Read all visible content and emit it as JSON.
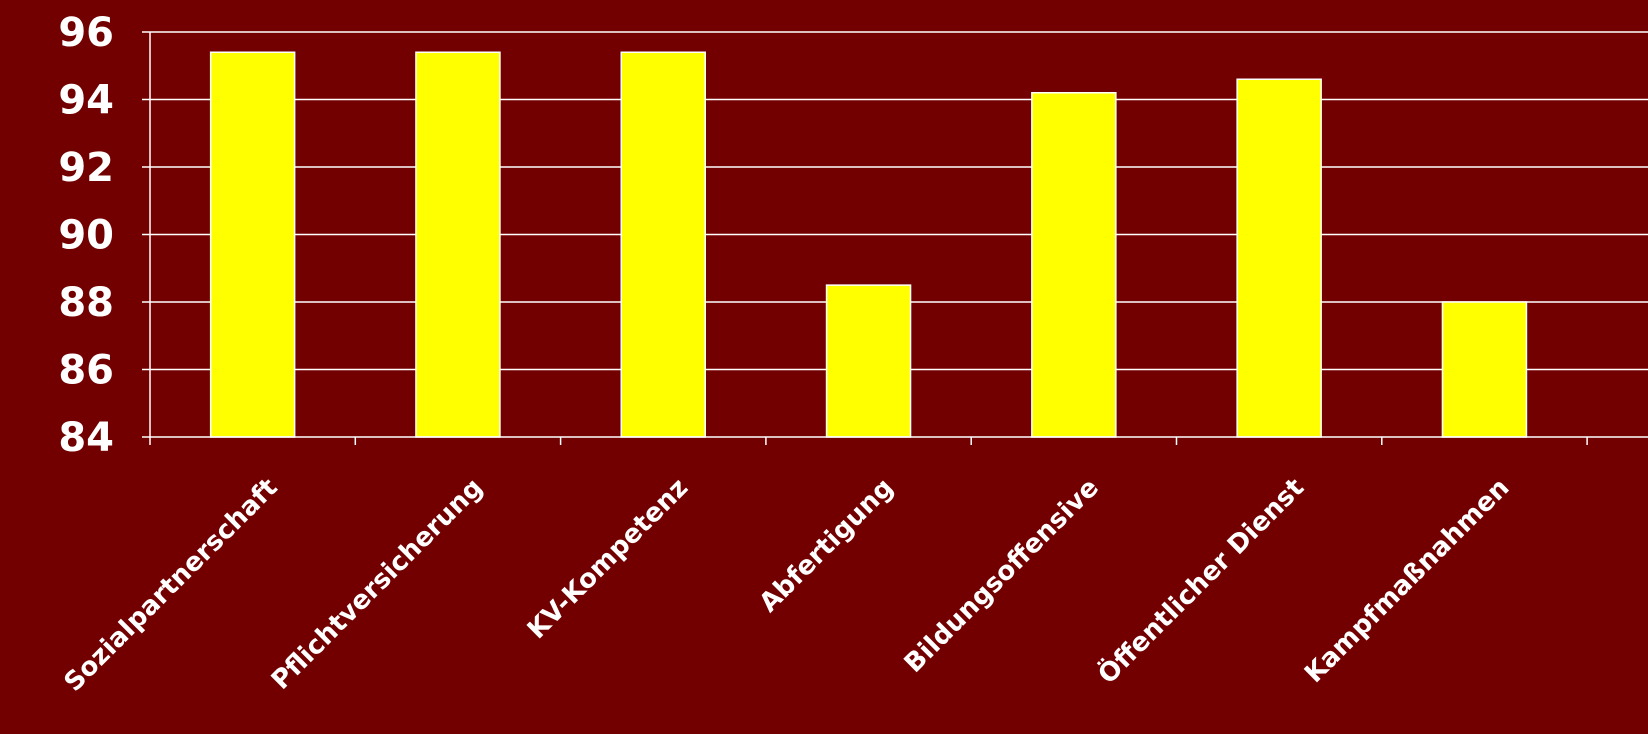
{
  "chart_data": {
    "type": "bar",
    "title": "",
    "xlabel": "",
    "ylabel": "",
    "categories": [
      "Sozialpartnerschaft",
      "Pflichtversicherung",
      "KV-Kompetenz",
      "Abfertigung",
      "Bildungsoffensive",
      "Öffentlicher Dienst",
      "Kampfmaßnahmen"
    ],
    "values": [
      95.4,
      95.4,
      95.4,
      88.5,
      94.2,
      94.6,
      88.0
    ],
    "ylim": [
      84,
      96
    ],
    "yticks": [
      "84",
      "86",
      "88",
      "90",
      "92",
      "94",
      "96"
    ],
    "grid": true,
    "legend": "none",
    "colors": {
      "background": "#720000",
      "bar_fill": "#ffff00",
      "bar_stroke": "#ffffff",
      "grid": "#ffffff",
      "text": "#ffffff"
    }
  }
}
